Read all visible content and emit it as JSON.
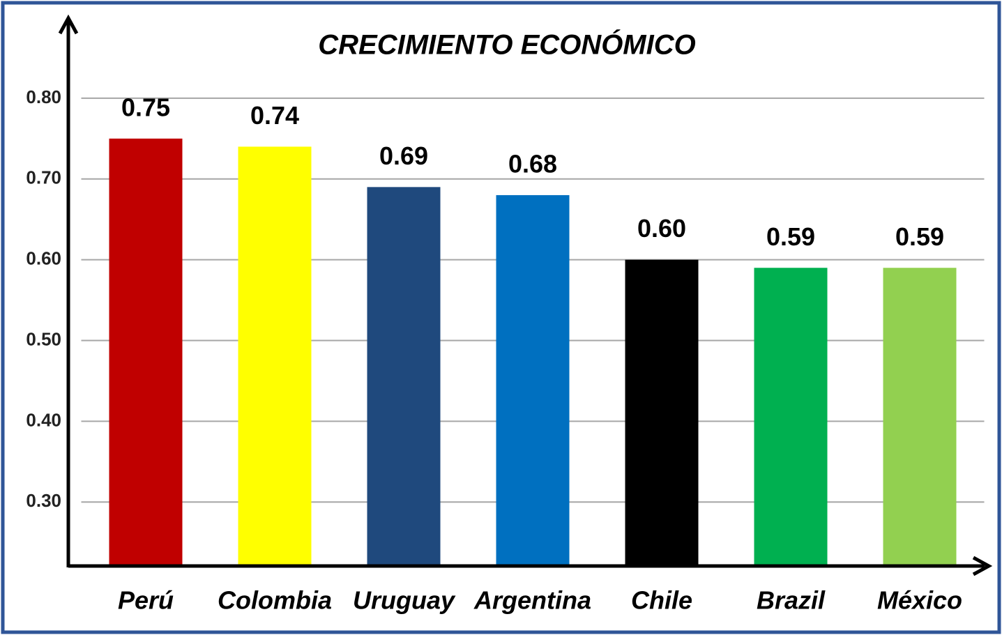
{
  "chart_data": {
    "type": "bar",
    "title": "CRECIMIENTO ECONÓMICO",
    "categories": [
      "Perú",
      "Colombia",
      "Uruguay",
      "Argentina",
      "Chile",
      "Brazil",
      "México"
    ],
    "values": [
      0.75,
      0.74,
      0.69,
      0.68,
      0.6,
      0.59,
      0.59
    ],
    "value_labels": [
      "0.75",
      "0.74",
      "0.69",
      "0.68",
      "0.60",
      "0.59",
      "0.59"
    ],
    "colors": [
      "#c00000",
      "#ffff00",
      "#1f497d",
      "#0070c0",
      "#000000",
      "#00b050",
      "#92d050"
    ],
    "ylim": [
      0.22,
      0.9
    ],
    "yticks": [
      {
        "value": 0.3,
        "label": "0.30"
      },
      {
        "value": 0.4,
        "label": "0.40"
      },
      {
        "value": 0.5,
        "label": "0.50"
      },
      {
        "value": 0.6,
        "label": "0.60"
      },
      {
        "value": 0.7,
        "label": "0.70"
      },
      {
        "value": 0.8,
        "label": "0.80"
      }
    ],
    "grid": true
  }
}
